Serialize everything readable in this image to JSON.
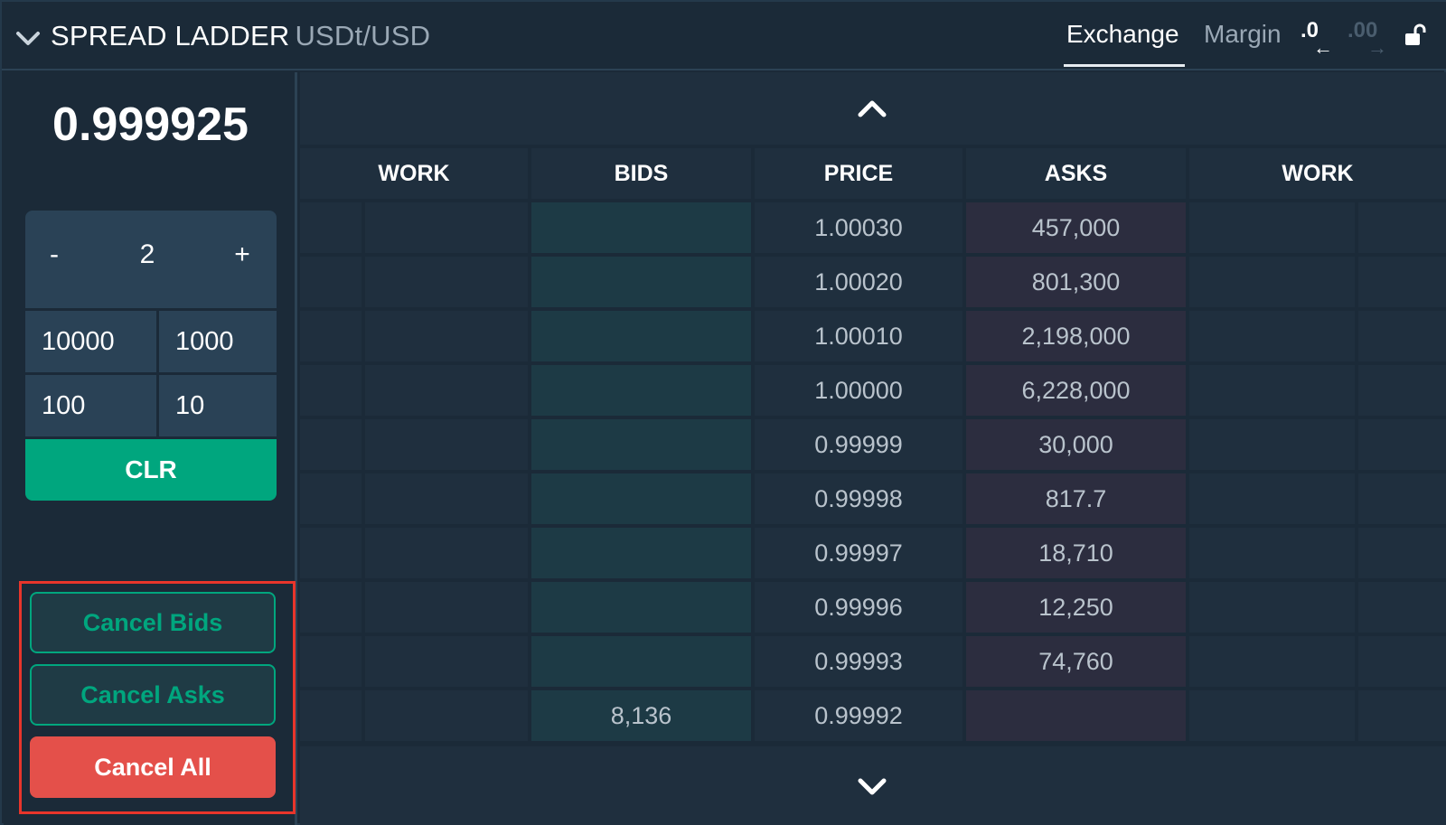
{
  "header": {
    "title": "SPREAD LADDER",
    "pair": "USDt/USD",
    "tabs": [
      {
        "label": "Exchange",
        "active": true
      },
      {
        "label": "Margin",
        "active": false
      }
    ],
    "precision_decrease": ".0",
    "precision_increase": ".00",
    "arrow_left": "←",
    "arrow_right": "→"
  },
  "left": {
    "mid_price": "0.999925",
    "stepper": {
      "minus": "-",
      "value": "2",
      "plus": "+"
    },
    "keys": [
      "10000",
      "1000",
      "100",
      "10"
    ],
    "clear": "CLR",
    "cancel_bids": "Cancel Bids",
    "cancel_asks": "Cancel Asks",
    "cancel_all": "Cancel All"
  },
  "ladder": {
    "headers": {
      "work_left": "WORK",
      "bids": "BIDS",
      "price": "PRICE",
      "asks": "ASKS",
      "work_right": "WORK"
    },
    "rows": [
      {
        "bid": "",
        "price": "1.00030",
        "ask": "457,000"
      },
      {
        "bid": "",
        "price": "1.00020",
        "ask": "801,300"
      },
      {
        "bid": "",
        "price": "1.00010",
        "ask": "2,198,000"
      },
      {
        "bid": "",
        "price": "1.00000",
        "ask": "6,228,000"
      },
      {
        "bid": "",
        "price": "0.99999",
        "ask": "30,000"
      },
      {
        "bid": "",
        "price": "0.99998",
        "ask": "817.7"
      },
      {
        "bid": "",
        "price": "0.99997",
        "ask": "18,710"
      },
      {
        "bid": "",
        "price": "0.99996",
        "ask": "12,250"
      },
      {
        "bid": "",
        "price": "0.99993",
        "ask": "74,760"
      },
      {
        "bid": "8,136",
        "price": "0.99992",
        "ask": ""
      }
    ]
  },
  "colors": {
    "background": "#1b2a38",
    "panel": "#2a4256",
    "accent_green": "#00a67e",
    "cancel_red": "#e4504a",
    "highlight_border": "#e8352b",
    "bid_cell": "#1d3a45",
    "ask_cell": "#2c2d3f"
  },
  "icons": {
    "collapse": "chevron-down-icon",
    "lock": "unlock-icon",
    "scroll_up": "chevron-up-icon",
    "scroll_down": "chevron-down-icon"
  }
}
